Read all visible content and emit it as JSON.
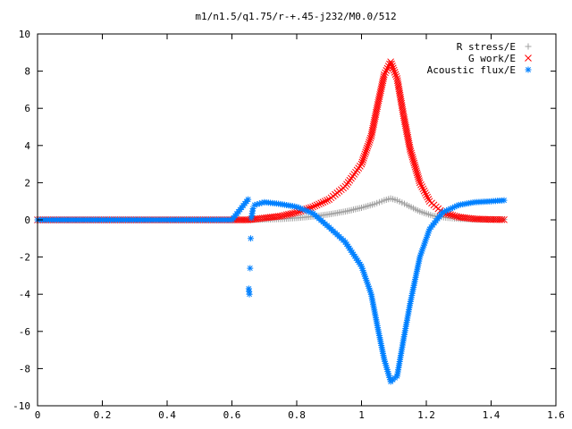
{
  "chart_data": {
    "type": "scatter",
    "title": "m1/n1.5/q1.75/r-+.45-j232/M0.0/512",
    "xlabel": "",
    "ylabel": "",
    "xlim": [
      0,
      1.6
    ],
    "ylim": [
      -10,
      10
    ],
    "x_ticks": [
      "0",
      "0.2",
      "0.4",
      "0.6",
      "0.8",
      "1",
      "1.2",
      "1.4",
      "1.6"
    ],
    "y_ticks": [
      "-10",
      "-8",
      "-6",
      "-4",
      "-2",
      "0",
      "2",
      "4",
      "6",
      "8",
      "10"
    ],
    "grid": false,
    "legend_position": "top-right",
    "series": [
      {
        "name": "R stress/E",
        "marker": "plus",
        "color": "#a0a0a0",
        "x": [
          0.0,
          0.1,
          0.2,
          0.3,
          0.4,
          0.5,
          0.6,
          0.65,
          0.7,
          0.75,
          0.8,
          0.85,
          0.9,
          0.95,
          1.0,
          1.04,
          1.07,
          1.09,
          1.11,
          1.14,
          1.18,
          1.22,
          1.26,
          1.3,
          1.35,
          1.4,
          1.44
        ],
        "y": [
          0.0,
          0.0,
          0.0,
          0.0,
          0.0,
          0.0,
          0.0,
          0.0,
          0.02,
          0.05,
          0.1,
          0.18,
          0.3,
          0.45,
          0.65,
          0.85,
          1.05,
          1.15,
          1.05,
          0.8,
          0.45,
          0.22,
          0.12,
          0.06,
          0.03,
          0.02,
          0.02
        ]
      },
      {
        "name": "G work/E",
        "marker": "cross",
        "color": "#ff0000",
        "x": [
          0.0,
          0.1,
          0.2,
          0.3,
          0.4,
          0.5,
          0.6,
          0.65,
          0.7,
          0.75,
          0.8,
          0.85,
          0.9,
          0.95,
          1.0,
          1.03,
          1.05,
          1.07,
          1.09,
          1.11,
          1.13,
          1.15,
          1.18,
          1.21,
          1.25,
          1.3,
          1.35,
          1.4,
          1.44
        ],
        "y": [
          0.0,
          0.0,
          0.0,
          0.0,
          0.0,
          0.0,
          0.0,
          0.0,
          0.1,
          0.2,
          0.4,
          0.7,
          1.1,
          1.8,
          3.0,
          4.5,
          6.2,
          7.8,
          8.5,
          7.6,
          5.6,
          3.8,
          2.0,
          1.0,
          0.4,
          0.15,
          0.05,
          0.02,
          0.01
        ]
      },
      {
        "name": "Acoustic flux/E",
        "marker": "star",
        "color": "#0080ff",
        "x": [
          0.0,
          0.1,
          0.2,
          0.3,
          0.4,
          0.5,
          0.6,
          0.65,
          0.652,
          0.654,
          0.656,
          0.658,
          0.66,
          0.665,
          0.67,
          0.7,
          0.75,
          0.8,
          0.85,
          0.9,
          0.95,
          1.0,
          1.03,
          1.05,
          1.07,
          1.09,
          1.11,
          1.13,
          1.15,
          1.18,
          1.21,
          1.25,
          1.3,
          1.35,
          1.4,
          1.44
        ],
        "y": [
          0.0,
          0.0,
          0.0,
          0.0,
          0.0,
          0.0,
          0.0,
          1.1,
          -3.7,
          -4.0,
          -2.6,
          -1.0,
          0.1,
          0.6,
          0.8,
          0.95,
          0.85,
          0.7,
          0.35,
          -0.4,
          -1.2,
          -2.5,
          -4.0,
          -5.8,
          -7.5,
          -8.7,
          -8.4,
          -6.4,
          -4.5,
          -2.0,
          -0.5,
          0.4,
          0.8,
          0.95,
          1.0,
          1.05
        ]
      }
    ]
  }
}
